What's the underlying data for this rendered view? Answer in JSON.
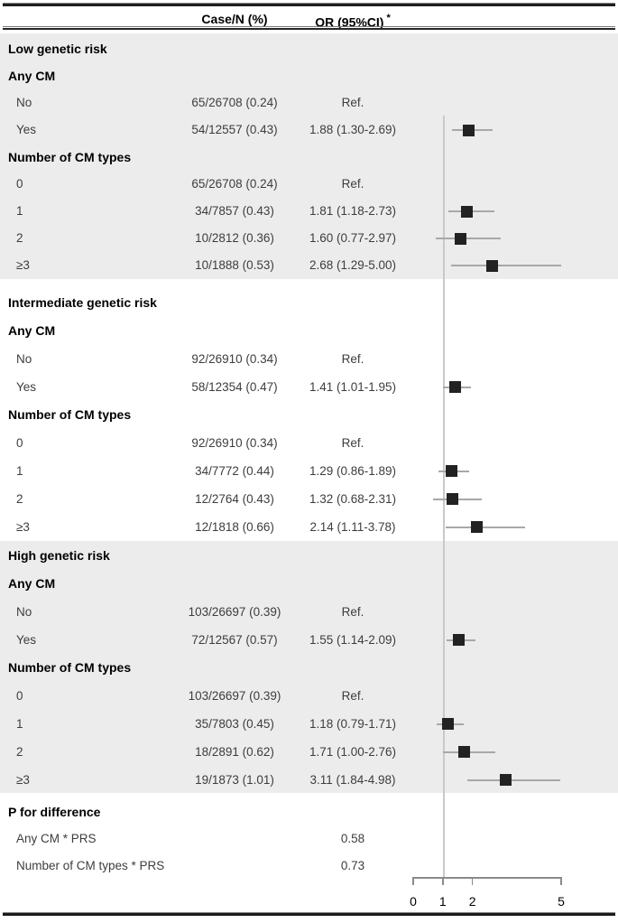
{
  "figure": {
    "columns": {
      "case_n": "Case/N (%)",
      "or": "OR (95%CI)",
      "or_footnote_marker": "*"
    },
    "sections": [
      {
        "title": "Low genetic risk",
        "shaded": true,
        "groups": [
          {
            "label": "Any CM",
            "rows": [
              {
                "label": "No",
                "case_n": "65/26708 (0.24)",
                "or_text": "Ref."
              },
              {
                "label": "Yes",
                "case_n": "54/12557 (0.43)",
                "or_text": "1.88 (1.30-2.69)",
                "or": 1.88,
                "lo": 1.3,
                "hi": 2.69
              }
            ]
          },
          {
            "label": "Number of CM types",
            "rows": [
              {
                "label": "0",
                "case_n": "65/26708 (0.24)",
                "or_text": "Ref."
              },
              {
                "label": "1",
                "case_n": "34/7857 (0.43)",
                "or_text": "1.81 (1.18-2.73)",
                "or": 1.81,
                "lo": 1.18,
                "hi": 2.73
              },
              {
                "label": "2",
                "case_n": "10/2812 (0.36)",
                "or_text": "1.60 (0.77-2.97)",
                "or": 1.6,
                "lo": 0.77,
                "hi": 2.97
              },
              {
                "label": "≥3",
                "case_n": "10/1888 (0.53)",
                "or_text": "2.68 (1.29-5.00)",
                "or": 2.68,
                "lo": 1.29,
                "hi": 5.0
              }
            ]
          }
        ]
      },
      {
        "title": "Intermediate genetic risk",
        "shaded": false,
        "groups": [
          {
            "label": "Any CM",
            "rows": [
              {
                "label": "No",
                "case_n": "92/26910 (0.34)",
                "or_text": "Ref."
              },
              {
                "label": "Yes",
                "case_n": "58/12354 (0.47)",
                "or_text": "1.41 (1.01-1.95)",
                "or": 1.41,
                "lo": 1.01,
                "hi": 1.95
              }
            ]
          },
          {
            "label": "Number of CM types",
            "rows": [
              {
                "label": "0",
                "case_n": "92/26910 (0.34)",
                "or_text": "Ref."
              },
              {
                "label": "1",
                "case_n": "34/7772 (0.44)",
                "or_text": "1.29 (0.86-1.89)",
                "or": 1.29,
                "lo": 0.86,
                "hi": 1.89
              },
              {
                "label": "2",
                "case_n": "12/2764 (0.43)",
                "or_text": "1.32 (0.68-2.31)",
                "or": 1.32,
                "lo": 0.68,
                "hi": 2.31
              },
              {
                "label": "≥3",
                "case_n": "12/1818 (0.66)",
                "or_text": "2.14 (1.11-3.78)",
                "or": 2.14,
                "lo": 1.11,
                "hi": 3.78
              }
            ]
          }
        ]
      },
      {
        "title": "High genetic risk",
        "shaded": true,
        "groups": [
          {
            "label": "Any CM",
            "rows": [
              {
                "label": "No",
                "case_n": "103/26697 (0.39)",
                "or_text": "Ref."
              },
              {
                "label": "Yes",
                "case_n": "72/12567 (0.57)",
                "or_text": "1.55 (1.14-2.09)",
                "or": 1.55,
                "lo": 1.14,
                "hi": 2.09
              }
            ]
          },
          {
            "label": "Number of CM types",
            "rows": [
              {
                "label": "0",
                "case_n": "103/26697 (0.39)",
                "or_text": "Ref."
              },
              {
                "label": "1",
                "case_n": "35/7803 (0.45)",
                "or_text": "1.18 (0.79-1.71)",
                "or": 1.18,
                "lo": 0.79,
                "hi": 1.71
              },
              {
                "label": "2",
                "case_n": "18/2891 (0.62)",
                "or_text": "1.71 (1.00-2.76)",
                "or": 1.71,
                "lo": 1.0,
                "hi": 2.76
              },
              {
                "label": "≥3",
                "case_n": "19/1873 (1.01)",
                "or_text": "3.11 (1.84-4.98)",
                "or": 3.11,
                "lo": 1.84,
                "hi": 4.98
              }
            ]
          }
        ]
      },
      {
        "title": "P for difference",
        "shaded": false,
        "groups": [
          {
            "label": "",
            "rows": [
              {
                "label": "Any CM * PRS",
                "case_n": "",
                "or_text": "0.58"
              },
              {
                "label": "Number of CM types * PRS",
                "case_n": "",
                "or_text": "0.73"
              }
            ]
          }
        ]
      }
    ],
    "axis": {
      "ticks": [
        0,
        1,
        2,
        5
      ],
      "reference_line": 1
    }
  },
  "chart_data": {
    "type": "forest",
    "title": "",
    "xlabel": "OR (95%CI)",
    "xticks": [
      0,
      1,
      2,
      5
    ],
    "xlim": [
      0,
      5
    ],
    "scale": "linear",
    "reference_line": 1,
    "marker_color": "#222222",
    "shaded_section_color": "#ececec",
    "series": [
      {
        "group": "Low genetic risk",
        "label": "Any CM: Yes",
        "case_n": "54/12557 (0.43)",
        "or": 1.88,
        "ci": [
          1.3,
          2.69
        ]
      },
      {
        "group": "Low genetic risk",
        "label": "Number of CM types: 1",
        "case_n": "34/7857 (0.43)",
        "or": 1.81,
        "ci": [
          1.18,
          2.73
        ]
      },
      {
        "group": "Low genetic risk",
        "label": "Number of CM types: 2",
        "case_n": "10/2812 (0.36)",
        "or": 1.6,
        "ci": [
          0.77,
          2.97
        ]
      },
      {
        "group": "Low genetic risk",
        "label": "Number of CM types: ≥3",
        "case_n": "10/1888 (0.53)",
        "or": 2.68,
        "ci": [
          1.29,
          5.0
        ]
      },
      {
        "group": "Intermediate genetic risk",
        "label": "Any CM: Yes",
        "case_n": "58/12354 (0.47)",
        "or": 1.41,
        "ci": [
          1.01,
          1.95
        ]
      },
      {
        "group": "Intermediate genetic risk",
        "label": "Number of CM types: 1",
        "case_n": "34/7772 (0.44)",
        "or": 1.29,
        "ci": [
          0.86,
          1.89
        ]
      },
      {
        "group": "Intermediate genetic risk",
        "label": "Number of CM types: 2",
        "case_n": "12/2764 (0.43)",
        "or": 1.32,
        "ci": [
          0.68,
          2.31
        ]
      },
      {
        "group": "Intermediate genetic risk",
        "label": "Number of CM types: ≥3",
        "case_n": "12/1818 (0.66)",
        "or": 2.14,
        "ci": [
          1.11,
          3.78
        ]
      },
      {
        "group": "High genetic risk",
        "label": "Any CM: Yes",
        "case_n": "72/12567 (0.57)",
        "or": 1.55,
        "ci": [
          1.14,
          2.09
        ]
      },
      {
        "group": "High genetic risk",
        "label": "Number of CM types: 1",
        "case_n": "35/7803 (0.45)",
        "or": 1.18,
        "ci": [
          0.79,
          1.71
        ]
      },
      {
        "group": "High genetic risk",
        "label": "Number of CM types: 2",
        "case_n": "18/2891 (0.62)",
        "or": 1.71,
        "ci": [
          1.0,
          2.76
        ]
      },
      {
        "group": "High genetic risk",
        "label": "Number of CM types: ≥3",
        "case_n": "19/1873 (1.01)",
        "or": 3.11,
        "ci": [
          1.84,
          4.98
        ]
      }
    ],
    "reference_rows": [
      {
        "group": "Low genetic risk",
        "label": "Any CM: No / 0 types",
        "case_n": "65/26708 (0.24)",
        "or_text": "Ref."
      },
      {
        "group": "Intermediate genetic risk",
        "label": "Any CM: No / 0 types",
        "case_n": "92/26910 (0.34)",
        "or_text": "Ref."
      },
      {
        "group": "High genetic risk",
        "label": "Any CM: No / 0 types",
        "case_n": "103/26697 (0.39)",
        "or_text": "Ref."
      }
    ],
    "p_for_difference": [
      {
        "label": "Any CM * PRS",
        "p": 0.58
      },
      {
        "label": "Number of CM types * PRS",
        "p": 0.73
      }
    ]
  }
}
